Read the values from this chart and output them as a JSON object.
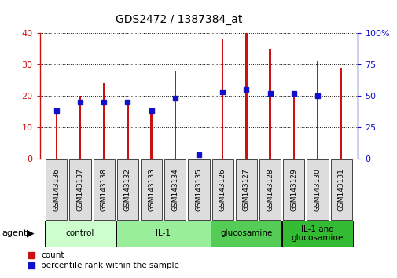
{
  "title": "GDS2472 / 1387384_at",
  "samples": [
    "GSM143136",
    "GSM143137",
    "GSM143138",
    "GSM143132",
    "GSM143133",
    "GSM143134",
    "GSM143135",
    "GSM143126",
    "GSM143127",
    "GSM143128",
    "GSM143129",
    "GSM143130",
    "GSM143131"
  ],
  "count_values": [
    15,
    20,
    24,
    17,
    15,
    28,
    0,
    38,
    40,
    35,
    20,
    31,
    29
  ],
  "percentile_values": [
    38,
    45,
    45,
    45,
    38,
    48,
    3,
    53,
    55,
    52,
    52,
    50,
    0
  ],
  "groups": [
    {
      "label": "control",
      "start": 0,
      "end": 3,
      "color": "#ccffcc"
    },
    {
      "label": "IL-1",
      "start": 3,
      "end": 7,
      "color": "#99ee99"
    },
    {
      "label": "glucosamine",
      "start": 7,
      "end": 10,
      "color": "#55cc55"
    },
    {
      "label": "IL-1 and\nglucosamine",
      "start": 10,
      "end": 13,
      "color": "#33bb33"
    }
  ],
  "bar_color": "#cc1111",
  "percentile_color": "#1111cc",
  "left_ylim": [
    0,
    40
  ],
  "right_ylim": [
    0,
    100
  ],
  "left_yticks": [
    0,
    10,
    20,
    30,
    40
  ],
  "right_yticks": [
    0,
    25,
    50,
    75,
    100
  ],
  "left_ytick_labels": [
    "0",
    "10",
    "20",
    "30",
    "40"
  ],
  "right_ytick_labels": [
    "0",
    "25",
    "50",
    "75",
    "100%"
  ],
  "bar_width": 0.08,
  "background_color": "#ffffff",
  "tick_label_bg": "#dddddd"
}
